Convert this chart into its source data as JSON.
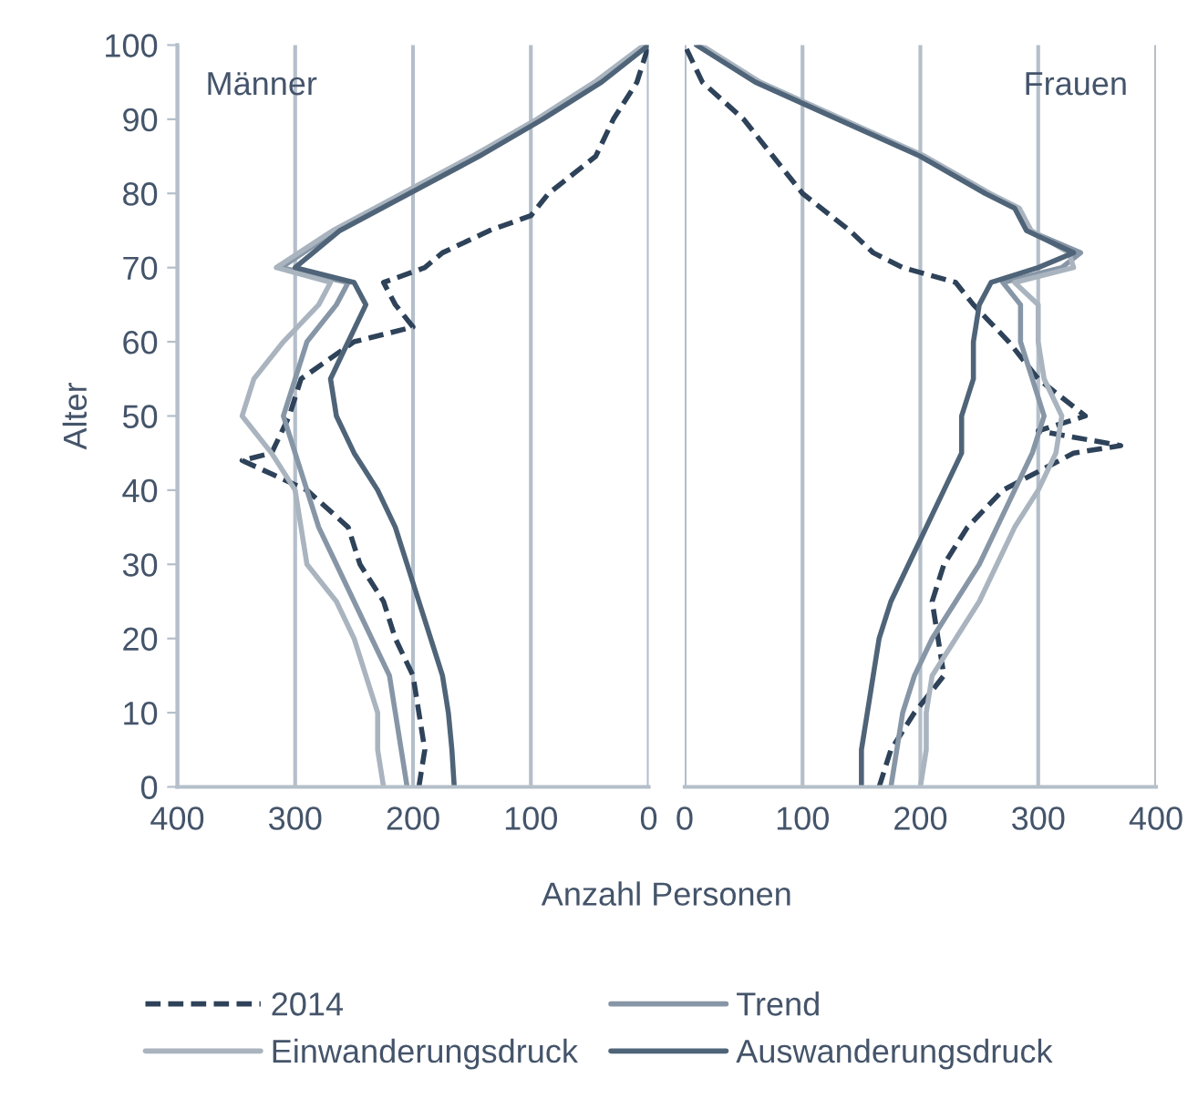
{
  "chart_data": [
    {
      "type": "line",
      "ylabel": "Alter",
      "xlabel": "Anzahl Personen",
      "annotations": [
        "Männer"
      ],
      "xlim": [
        400,
        0
      ],
      "xticks": [
        400,
        300,
        200,
        100,
        0
      ],
      "ylim": [
        0,
        100
      ],
      "yticks": [
        0,
        10,
        20,
        30,
        40,
        50,
        60,
        70,
        80,
        90,
        100
      ],
      "grid": "x",
      "legend": "bottom",
      "series": [
        {
          "name": "2014",
          "color": "#2e4259",
          "line_style": "dashed",
          "x": [
            195,
            190,
            195,
            200,
            215,
            225,
            245,
            255,
            290,
            345,
            320,
            305,
            295,
            250,
            200,
            215,
            225,
            190,
            175,
            135,
            100,
            85,
            45,
            30,
            10,
            0
          ],
          "values": [
            0,
            5,
            10,
            15,
            20,
            25,
            30,
            35,
            40,
            44,
            45,
            50,
            55,
            60,
            62,
            65,
            68,
            70,
            72,
            75,
            77,
            80,
            85,
            90,
            95,
            100
          ]
        },
        {
          "name": "Trend",
          "color": "#8796a6",
          "x": [
            205,
            210,
            215,
            220,
            235,
            250,
            265,
            280,
            290,
            300,
            310,
            300,
            290,
            265,
            255,
            312,
            265,
            206,
            148,
            93,
            44,
            2
          ],
          "values": [
            0,
            5,
            10,
            15,
            20,
            25,
            30,
            35,
            40,
            45,
            50,
            55,
            60,
            65,
            68,
            70,
            75,
            80,
            85,
            90,
            95,
            100
          ]
        },
        {
          "name": "Einwanderungsdruck",
          "color": "#a9b4bf",
          "x": [
            225,
            230,
            230,
            240,
            250,
            265,
            290,
            295,
            300,
            320,
            345,
            335,
            310,
            280,
            270,
            316,
            268,
            209,
            150,
            95,
            46,
            4
          ],
          "values": [
            0,
            5,
            10,
            15,
            20,
            25,
            30,
            35,
            40,
            45,
            50,
            55,
            60,
            65,
            68,
            70,
            75,
            80,
            85,
            90,
            95,
            100
          ]
        },
        {
          "name": "Auswanderungsdruck",
          "color": "#4f6478",
          "x": [
            165,
            167,
            170,
            175,
            185,
            195,
            205,
            215,
            230,
            250,
            265,
            270,
            255,
            240,
            250,
            300,
            262,
            203,
            144,
            90,
            40,
            0
          ],
          "values": [
            0,
            5,
            10,
            15,
            20,
            25,
            30,
            35,
            40,
            45,
            50,
            55,
            60,
            65,
            68,
            70,
            75,
            80,
            85,
            90,
            95,
            100
          ]
        }
      ]
    },
    {
      "type": "line",
      "annotations": [
        "Frauen"
      ],
      "xlim": [
        0,
        400
      ],
      "xticks": [
        0,
        100,
        200,
        300,
        400
      ],
      "ylim": [
        0,
        100
      ],
      "yticks": [
        0,
        10,
        20,
        30,
        40,
        50,
        60,
        70,
        80,
        90,
        100
      ],
      "grid": "x",
      "tick_labels": "x",
      "series": [
        {
          "color": "#2e4259",
          "line_style": "dashed",
          "x": [
            165,
            175,
            195,
            220,
            215,
            210,
            220,
            240,
            270,
            330,
            370,
            300,
            340,
            300,
            275,
            245,
            230,
            185,
            160,
            140,
            100,
            75,
            50,
            15,
            0
          ],
          "values": [
            0,
            5,
            10,
            15,
            20,
            25,
            30,
            35,
            40,
            45,
            46,
            48,
            50,
            55,
            60,
            65,
            68,
            70,
            72,
            75,
            80,
            85,
            90,
            95,
            100
          ]
        },
        {
          "color": "#8796a6",
          "x": [
            175,
            180,
            185,
            195,
            210,
            230,
            250,
            265,
            280,
            295,
            305,
            295,
            285,
            285,
            270,
            320,
            336,
            292,
            282,
            257,
            202,
            132,
            62,
            12
          ],
          "values": [
            0,
            5,
            10,
            15,
            20,
            25,
            30,
            35,
            40,
            45,
            50,
            55,
            60,
            65,
            68,
            70,
            72,
            75,
            78,
            80,
            85,
            90,
            95,
            100
          ]
        },
        {
          "color": "#a9b4bf",
          "x": [
            200,
            205,
            205,
            210,
            230,
            250,
            265,
            280,
            300,
            315,
            320,
            305,
            300,
            300,
            280,
            330,
            326,
            294,
            284,
            259,
            204,
            134,
            64,
            14
          ],
          "values": [
            0,
            5,
            10,
            15,
            20,
            25,
            30,
            35,
            40,
            45,
            50,
            55,
            60,
            65,
            68,
            70,
            72,
            75,
            78,
            80,
            85,
            90,
            95,
            100
          ]
        },
        {
          "color": "#4f6478",
          "x": [
            150,
            150,
            155,
            160,
            165,
            175,
            190,
            205,
            220,
            235,
            235,
            245,
            245,
            250,
            260,
            300,
            330,
            290,
            280,
            255,
            200,
            130,
            60,
            10
          ],
          "values": [
            0,
            5,
            10,
            15,
            20,
            25,
            30,
            35,
            40,
            45,
            50,
            55,
            60,
            65,
            68,
            70,
            72,
            75,
            78,
            80,
            85,
            90,
            95,
            100
          ]
        }
      ]
    }
  ]
}
